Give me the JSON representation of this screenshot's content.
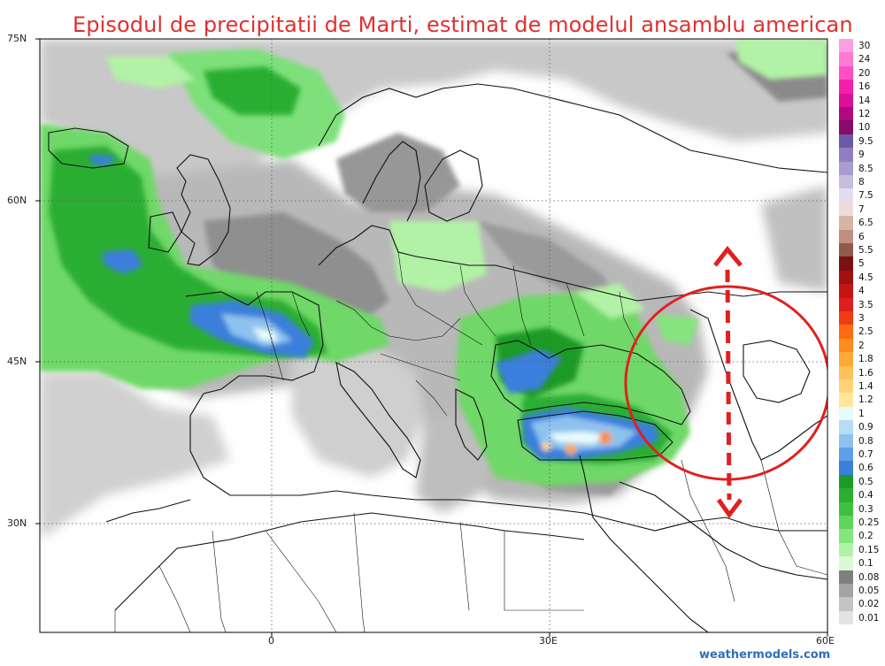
{
  "title": "Episodul de precipitatii de Marti, estimat de modelul ansamblu american",
  "credit": "weathermodels.com",
  "lat_labels": [
    "75N",
    "60N",
    "45N",
    "30N"
  ],
  "lon_labels": [
    "0",
    "30E",
    "60E"
  ],
  "legend": [
    {
      "label": "30",
      "color": "#ff9ee0"
    },
    {
      "label": "24",
      "color": "#ff7ad2"
    },
    {
      "label": "20",
      "color": "#ff4fc4"
    },
    {
      "label": "16",
      "color": "#f51fae"
    },
    {
      "label": "14",
      "color": "#d8109a"
    },
    {
      "label": "12",
      "color": "#b0087e"
    },
    {
      "label": "10",
      "color": "#8a0a6a"
    },
    {
      "label": "9.5",
      "color": "#6b5aa6"
    },
    {
      "label": "9",
      "color": "#8f7fc0"
    },
    {
      "label": "8.5",
      "color": "#a99ccf"
    },
    {
      "label": "8",
      "color": "#c6bde0"
    },
    {
      "label": "7.5",
      "color": "#e2dcef"
    },
    {
      "label": "7",
      "color": "#f0dcd6"
    },
    {
      "label": "6.5",
      "color": "#d8b4a8"
    },
    {
      "label": "6",
      "color": "#bf8f80"
    },
    {
      "label": "5.5",
      "color": "#8e5a4c"
    },
    {
      "label": "5",
      "color": "#7a1010"
    },
    {
      "label": "4.5",
      "color": "#a01010"
    },
    {
      "label": "4",
      "color": "#c41414"
    },
    {
      "label": "3.5",
      "color": "#e01e1e"
    },
    {
      "label": "3",
      "color": "#f03c14"
    },
    {
      "label": "2.5",
      "color": "#ff6a14"
    },
    {
      "label": "2",
      "color": "#ff8c1e"
    },
    {
      "label": "1.8",
      "color": "#ffa838"
    },
    {
      "label": "1.6",
      "color": "#ffc05a"
    },
    {
      "label": "1.4",
      "color": "#ffd478"
    },
    {
      "label": "1.2",
      "color": "#ffe89a"
    },
    {
      "label": "1",
      "color": "#e6fbfb"
    },
    {
      "label": "0.9",
      "color": "#b8dcf6"
    },
    {
      "label": "0.8",
      "color": "#8ec2ee"
    },
    {
      "label": "0.7",
      "color": "#5f9fe6"
    },
    {
      "label": "0.6",
      "color": "#3a7fdc"
    },
    {
      "label": "0.5",
      "color": "#1e9a28"
    },
    {
      "label": "0.4",
      "color": "#2cae30"
    },
    {
      "label": "0.3",
      "color": "#3ec23e"
    },
    {
      "label": "0.25",
      "color": "#5ed45a"
    },
    {
      "label": "0.2",
      "color": "#86e47e"
    },
    {
      "label": "0.15",
      "color": "#b2f2a6"
    },
    {
      "label": "0.1",
      "color": "#d9fad2"
    },
    {
      "label": "0.08",
      "color": "#7f7f7f"
    },
    {
      "label": "0.05",
      "color": "#a3a3a3"
    },
    {
      "label": "0.02",
      "color": "#c4c4c4"
    },
    {
      "label": "0.01",
      "color": "#e3e3e3"
    }
  ]
}
